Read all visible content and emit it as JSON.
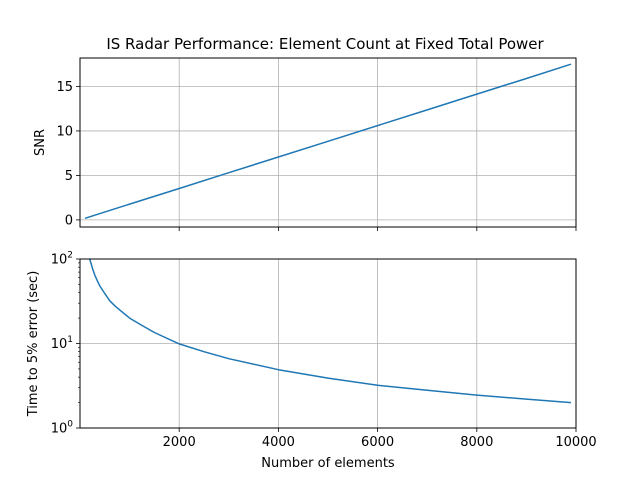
{
  "chart_data": [
    {
      "type": "line",
      "title": "IS Radar Performance: Element Count at Fixed Total Power",
      "xlabel": "",
      "ylabel": "SNR",
      "xlim": [
        0,
        10000
      ],
      "ylim": [
        -0.8,
        18.2
      ],
      "x_ticks": [
        2000,
        4000,
        6000,
        8000,
        10000
      ],
      "x_tick_labels_shown": false,
      "y_ticks": [
        0,
        5,
        10,
        15
      ],
      "y_tick_labels": [
        "0",
        "5",
        "10",
        "15"
      ],
      "grid": true,
      "color": "#1f77b4",
      "series": [
        {
          "x": [
            100,
            1000,
            2000,
            3000,
            4000,
            5000,
            6000,
            7000,
            8000,
            9000,
            9900
          ],
          "values": [
            0.18,
            1.77,
            3.53,
            5.3,
            7.07,
            8.84,
            10.6,
            12.37,
            14.14,
            15.9,
            17.5
          ]
        }
      ]
    },
    {
      "type": "line",
      "title": "",
      "xlabel": "Number of elements",
      "ylabel": "Time to 5% error (sec)",
      "xlim": [
        0,
        10000
      ],
      "ylim": [
        1,
        100
      ],
      "yscale": "log",
      "x_ticks": [
        2000,
        4000,
        6000,
        8000,
        10000
      ],
      "x_tick_labels": [
        "2000",
        "4000",
        "6000",
        "8000",
        "10000"
      ],
      "y_ticks": [
        1,
        10,
        100
      ],
      "y_tick_labels": [
        "10^0",
        "10^1",
        "10^2"
      ],
      "grid": true,
      "color": "#1f77b4",
      "series": [
        {
          "x": [
            195,
            220,
            250,
            300,
            350,
            400,
            500,
            600,
            700,
            800,
            1000,
            1200,
            1500,
            2000,
            2500,
            3000,
            4000,
            5000,
            6000,
            7000,
            8000,
            9000,
            9900
          ],
          "values": [
            100,
            90,
            78,
            64,
            55,
            48,
            39,
            32,
            28,
            25,
            20,
            17,
            13.5,
            9.9,
            8.0,
            6.6,
            4.9,
            3.9,
            3.2,
            2.8,
            2.45,
            2.2,
            2.0
          ]
        }
      ]
    }
  ]
}
